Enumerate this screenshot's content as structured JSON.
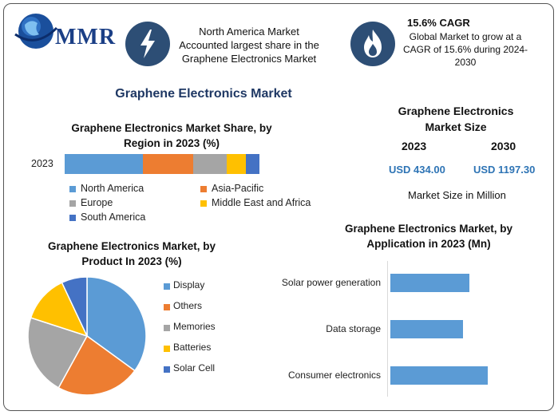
{
  "logo": {
    "text": "MMR"
  },
  "header": {
    "box1": {
      "lines": [
        "North America Market",
        "Accounted largest share in the",
        "Graphene Electronics Market"
      ]
    },
    "box2": {
      "title": "15.6% CAGR",
      "lines": [
        "Global Market to grow at a",
        "CAGR of 15.6% during 2024-",
        "2030"
      ]
    }
  },
  "main_title": "Graphene Electronics Market",
  "market_size": {
    "title_lines": [
      "Graphene Electronics",
      "Market Size"
    ],
    "years": [
      "2023",
      "2030"
    ],
    "values": [
      "USD 434.00",
      "USD 1197.30"
    ],
    "unit": "Market Size in Million"
  },
  "colors": {
    "accent": "#2d4e75",
    "value_blue": "#2e74b5",
    "title_navy": "#1f3864"
  },
  "chart_data": [
    {
      "id": "region",
      "type": "bar",
      "stacked": true,
      "orientation": "horizontal",
      "title_lines": [
        "Graphene Electronics Market Share, by",
        "Region in 2023 (%)"
      ],
      "categories": [
        "2023"
      ],
      "series": [
        {
          "name": "North America",
          "values": [
            40
          ],
          "color": "#5b9bd5"
        },
        {
          "name": "Asia-Pacific",
          "values": [
            26
          ],
          "color": "#ed7d31"
        },
        {
          "name": "Europe",
          "values": [
            17
          ],
          "color": "#a5a5a5"
        },
        {
          "name": "Middle East and Africa",
          "values": [
            10
          ],
          "color": "#ffc000"
        },
        {
          "name": "South America",
          "values": [
            7
          ],
          "color": "#4472c4"
        }
      ],
      "xlim": [
        0,
        100
      ],
      "legend": "bottom"
    },
    {
      "id": "product",
      "type": "pie",
      "title_lines": [
        "Graphene Electronics Market, by",
        "Product In 2023 (%)"
      ],
      "labels": [
        "Display",
        "Others",
        "Memories",
        "Batteries",
        "Solar Cell"
      ],
      "values": [
        35,
        23,
        22,
        13,
        7
      ],
      "colors": [
        "#5b9bd5",
        "#ed7d31",
        "#a5a5a5",
        "#ffc000",
        "#4472c4"
      ],
      "legend": "right"
    },
    {
      "id": "application",
      "type": "bar",
      "orientation": "horizontal",
      "title_lines": [
        "Graphene Electronics Market, by",
        "Application in 2023 (Mn)"
      ],
      "categories": [
        "Solar power generation",
        "Data storage",
        "Consumer electronics"
      ],
      "values": [
        110,
        101,
        136
      ],
      "color": "#5b9bd5",
      "xlim": [
        0,
        200
      ]
    }
  ]
}
